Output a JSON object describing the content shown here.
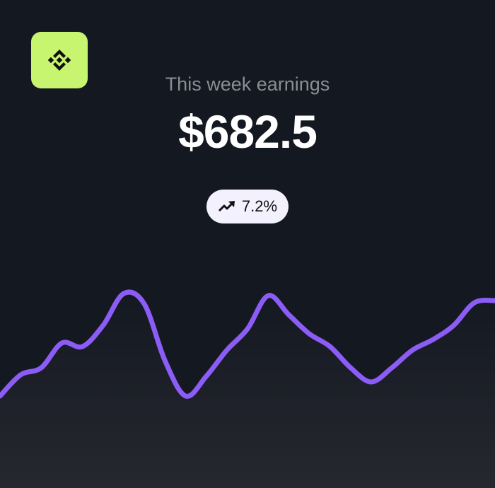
{
  "logo": {
    "icon": "binance-diamond-icon",
    "background": "#c8f56f"
  },
  "earnings": {
    "label": "This week earnings",
    "amount": "$682.5"
  },
  "change_badge": {
    "icon": "trending-up-icon",
    "value": "7.2%"
  },
  "chart_data": {
    "type": "area",
    "values": [
      40,
      70,
      80,
      115,
      110,
      140,
      185,
      170,
      90,
      40,
      68,
      105,
      135,
      182,
      155,
      128,
      110,
      80,
      60,
      80,
      105,
      120,
      140,
      172,
      175
    ],
    "line_color": "#8b5cf6",
    "grid": false,
    "axes": false
  }
}
